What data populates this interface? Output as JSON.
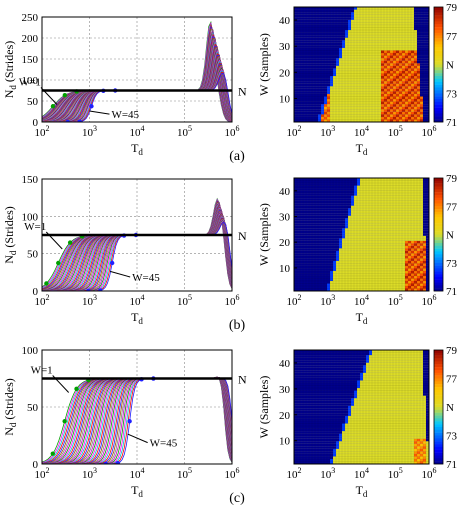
{
  "figure": {
    "captions": [
      "(a)",
      "(b)",
      "(c)"
    ]
  },
  "chart_data": [
    {
      "id": "a-left",
      "type": "line",
      "xlabel": "T_d",
      "ylabel": "N_d (Strides)",
      "xscale": "log",
      "xlim": [
        100,
        1000000
      ],
      "ylim": [
        0,
        250
      ],
      "xticks": [
        100,
        1000,
        10000,
        100000,
        1000000
      ],
      "xticklabels": [
        "10^2",
        "10^3",
        "10^4",
        "10^5",
        "10^6"
      ],
      "yticks": [
        0,
        50,
        100,
        150,
        200,
        250
      ],
      "yticklabels": [
        "0",
        "50",
        "100",
        "150",
        "200",
        "250"
      ],
      "grid": true,
      "reference_line": {
        "value": 75,
        "label": "N"
      },
      "annotations": [
        {
          "text": "W=1"
        },
        {
          "text": "W=45"
        }
      ],
      "series_count": 45,
      "rise": {
        "w1_center": 170,
        "w45_center": 1100,
        "w1_width": 0.32,
        "w45_width": 0.12
      },
      "peak": {
        "w1_center": 350000,
        "w45_center": 650000,
        "height_w1": 240,
        "height_w45": 120
      },
      "fall": {
        "w1_center": 600000,
        "w45_center": 900000
      }
    },
    {
      "id": "a-right",
      "type": "heatmap",
      "xlabel": "T_d",
      "ylabel": "W (Samples)",
      "xscale": "log",
      "xlim": [
        100,
        1000000
      ],
      "ylim": [
        1,
        45
      ],
      "xticks": [
        100,
        1000,
        10000,
        100000,
        1000000
      ],
      "xticklabels": [
        "10^2",
        "10^3",
        "10^4",
        "10^5",
        "10^6"
      ],
      "yticks": [
        10,
        20,
        30,
        40
      ],
      "yticklabels": [
        "10",
        "20",
        "30",
        "40"
      ],
      "colorbar": {
        "min": 71,
        "max": 79,
        "ticks": [
          79,
          77,
          75,
          73,
          71
        ],
        "ticklabels": [
          "79",
          "77",
          "N",
          "73",
          "71"
        ]
      },
      "rows": 45,
      "cols": 45,
      "left_edge": {
        "w1": 600,
        "w45": 7000
      },
      "right_edge": {
        "w1": 700000,
        "w45": 350000
      },
      "hot_regions": [
        {
          "x_from": 600,
          "x_to": 1200,
          "w_from": 1,
          "w_to": 12,
          "value": 78
        },
        {
          "x_from": 40000,
          "x_to": 800000,
          "w_from": 1,
          "w_to": 28,
          "value": 78.5
        }
      ]
    },
    {
      "id": "b-left",
      "type": "line",
      "xlabel": "T_d",
      "ylabel": "N_d (Strides)",
      "xscale": "log",
      "xlim": [
        100,
        1000000
      ],
      "ylim": [
        0,
        150
      ],
      "xticks": [
        100,
        1000,
        10000,
        100000,
        1000000
      ],
      "xticklabels": [
        "10^2",
        "10^3",
        "10^4",
        "10^5",
        "10^6"
      ],
      "yticks": [
        0,
        50,
        100,
        150
      ],
      "yticklabels": [
        "0",
        "50",
        "100",
        "150"
      ],
      "grid": true,
      "reference_line": {
        "value": 75,
        "label": "N"
      },
      "annotations": [
        {
          "text": "W=1"
        },
        {
          "text": "W=45"
        }
      ],
      "series_count": 45,
      "rise": {
        "w1_center": 220,
        "w45_center": 3000,
        "w1_width": 0.3,
        "w45_width": 0.12
      },
      "peak": {
        "w1_center": 500000,
        "w45_center": 700000,
        "height_w1": 125,
        "height_w45": 95
      },
      "fall": {
        "w1_center": 750000,
        "w45_center": 950000
      }
    },
    {
      "id": "b-right",
      "type": "heatmap",
      "xlabel": "T_d",
      "ylabel": "W (Samples)",
      "xscale": "log",
      "xlim": [
        100,
        1000000
      ],
      "ylim": [
        1,
        45
      ],
      "xticks": [
        100,
        1000,
        10000,
        100000,
        1000000
      ],
      "xticklabels": [
        "10^2",
        "10^3",
        "10^4",
        "10^5",
        "10^6"
      ],
      "yticks": [
        10,
        20,
        30,
        40
      ],
      "yticklabels": [
        "10",
        "20",
        "30",
        "40"
      ],
      "colorbar": {
        "min": 71,
        "max": 79,
        "ticks": [
          79,
          77,
          75,
          73,
          71
        ],
        "ticklabels": [
          "79",
          "77",
          "N",
          "73",
          "71"
        ]
      },
      "rows": 45,
      "cols": 45,
      "left_edge": {
        "w1": 1100,
        "w45": 9000
      },
      "right_edge": {
        "w1": 900000,
        "w45": 600000
      },
      "hot_regions": [
        {
          "x_from": 200000,
          "x_to": 800000,
          "w_from": 1,
          "w_to": 20,
          "value": 78.5
        }
      ]
    },
    {
      "id": "c-left",
      "type": "line",
      "xlabel": "T_d",
      "ylabel": "N_d (Strides)",
      "xscale": "log",
      "xlim": [
        100,
        1000000
      ],
      "ylim": [
        0,
        100
      ],
      "xticks": [
        100,
        1000,
        10000,
        100000,
        1000000
      ],
      "xticklabels": [
        "10^2",
        "10^3",
        "10^4",
        "10^5",
        "10^6"
      ],
      "yticks": [
        0,
        50,
        100
      ],
      "yticklabels": [
        "0",
        "50",
        "100"
      ],
      "grid": true,
      "reference_line": {
        "value": 75,
        "label": "N"
      },
      "annotations": [
        {
          "text": "W=1"
        },
        {
          "text": "W=45"
        }
      ],
      "series_count": 45,
      "rise": {
        "w1_center": 300,
        "w45_center": 7000,
        "w1_width": 0.28,
        "w45_width": 0.12
      },
      "peak": {
        "w1_center": 600000,
        "w45_center": 800000,
        "height_w1": 80,
        "height_w45": 76
      },
      "fall": {
        "w1_center": 700000,
        "w45_center": 1000000
      }
    },
    {
      "id": "c-right",
      "type": "heatmap",
      "xlabel": "T_d",
      "ylabel": "W (Samples)",
      "xscale": "log",
      "xlim": [
        100,
        1000000
      ],
      "ylim": [
        1,
        45
      ],
      "xticks": [
        100,
        1000,
        10000,
        100000,
        1000000
      ],
      "xticklabels": [
        "10^2",
        "10^3",
        "10^4",
        "10^5",
        "10^6"
      ],
      "yticks": [
        10,
        20,
        30,
        40
      ],
      "yticklabels": [
        "10",
        "20",
        "30",
        "40"
      ],
      "colorbar": {
        "min": 71,
        "max": 79,
        "ticks": [
          79,
          77,
          75,
          73,
          71
        ],
        "ticklabels": [
          "79",
          "77",
          "N",
          "73",
          "71"
        ]
      },
      "rows": 45,
      "cols": 45,
      "left_edge": {
        "w1": 1400,
        "w45": 20000
      },
      "right_edge": {
        "w1": 1000000,
        "w45": 600000
      },
      "hot_regions": [
        {
          "x_from": 350000,
          "x_to": 800000,
          "w_from": 1,
          "w_to": 10,
          "value": 77.5
        }
      ]
    }
  ]
}
